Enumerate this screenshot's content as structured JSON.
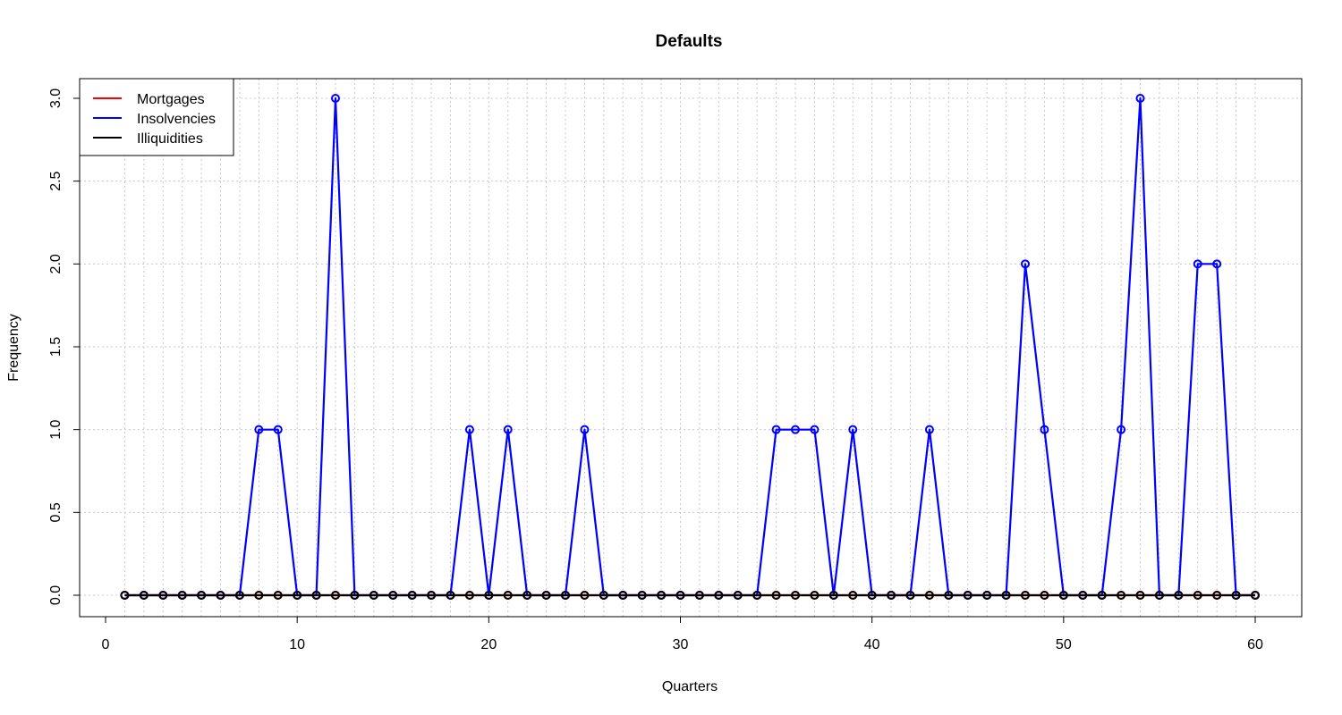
{
  "chart_data": {
    "type": "line",
    "title": "Defaults",
    "xlabel": "Quarters",
    "ylabel": "Frequency",
    "xlim": [
      0,
      62
    ],
    "ylim": [
      0,
      3.0
    ],
    "x_ticks": [
      0,
      10,
      20,
      30,
      40,
      50,
      60
    ],
    "y_ticks": [
      0.0,
      0.5,
      1.0,
      1.5,
      2.0,
      2.5,
      3.0
    ],
    "grid": true,
    "legend_position": "top-left",
    "x": [
      1,
      2,
      3,
      4,
      5,
      6,
      7,
      8,
      9,
      10,
      11,
      12,
      13,
      14,
      15,
      16,
      17,
      18,
      19,
      20,
      21,
      22,
      23,
      24,
      25,
      26,
      27,
      28,
      29,
      30,
      31,
      32,
      33,
      34,
      35,
      36,
      37,
      38,
      39,
      40,
      41,
      42,
      43,
      44,
      45,
      46,
      47,
      48,
      49,
      50,
      51,
      52,
      53,
      54,
      55,
      56,
      57,
      58,
      59,
      60
    ],
    "series": [
      {
        "name": "Mortgages",
        "color": "#ff0000",
        "values": [
          0,
          0,
          0,
          0,
          0,
          0,
          0,
          0,
          0,
          0,
          0,
          0,
          0,
          0,
          0,
          0,
          0,
          0,
          0,
          0,
          0,
          0,
          0,
          0,
          0,
          0,
          0,
          0,
          0,
          0,
          0,
          0,
          0,
          0,
          0,
          0,
          0,
          0,
          0,
          0,
          0,
          0,
          0,
          0,
          0,
          0,
          0,
          0,
          0,
          0,
          0,
          0,
          0,
          0,
          0,
          0,
          0,
          0,
          0,
          0
        ]
      },
      {
        "name": "Insolvencies",
        "color": "#0000ff",
        "values": [
          0,
          0,
          0,
          0,
          0,
          0,
          0,
          1,
          1,
          0,
          0,
          3,
          0,
          0,
          0,
          0,
          0,
          0,
          1,
          0,
          1,
          0,
          0,
          0,
          1,
          0,
          0,
          0,
          0,
          0,
          0,
          0,
          0,
          0,
          1,
          1,
          1,
          0,
          1,
          0,
          0,
          0,
          1,
          0,
          0,
          0,
          0,
          2,
          1,
          0,
          0,
          0,
          1,
          3,
          0,
          0,
          2,
          2,
          0,
          0
        ]
      },
      {
        "name": "Illiquidities",
        "color": "#000000",
        "values": [
          0,
          0,
          0,
          0,
          0,
          0,
          0,
          0,
          0,
          0,
          0,
          0,
          0,
          0,
          0,
          0,
          0,
          0,
          0,
          0,
          0,
          0,
          0,
          0,
          0,
          0,
          0,
          0,
          0,
          0,
          0,
          0,
          0,
          0,
          0,
          0,
          0,
          0,
          0,
          0,
          0,
          0,
          0,
          0,
          0,
          0,
          0,
          0,
          0,
          0,
          0,
          0,
          0,
          0,
          0,
          0,
          0,
          0,
          0,
          0
        ]
      }
    ]
  }
}
